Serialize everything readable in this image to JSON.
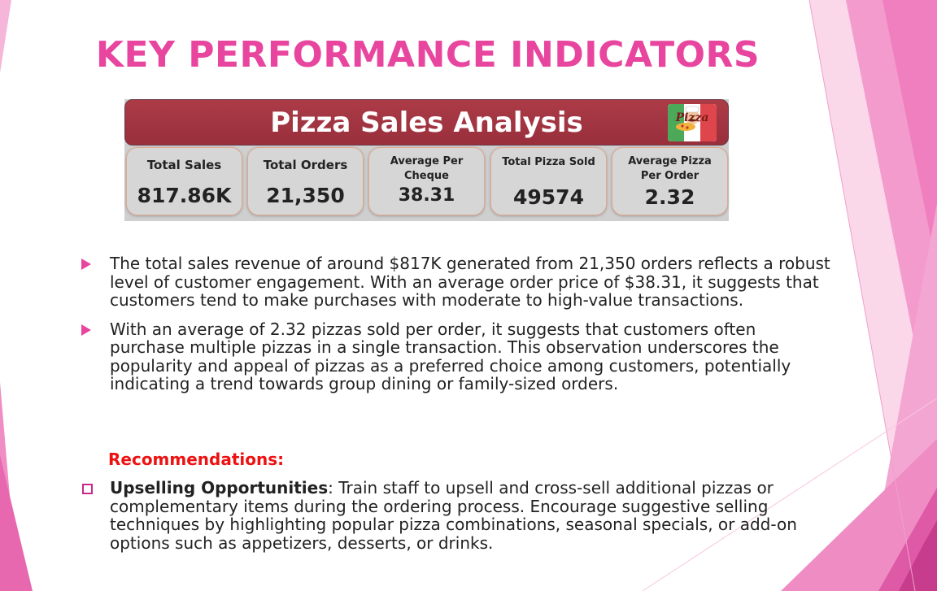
{
  "slide": {
    "title": "KEY PERFORMANCE INDICATORS"
  },
  "dashboard": {
    "banner_title": "Pizza Sales Analysis",
    "logo_text": "Pizza",
    "cards": [
      {
        "label": "Total Sales",
        "value": "817.86K"
      },
      {
        "label": "Total Orders",
        "value": "21,350"
      },
      {
        "label": "Average Per Cheque",
        "value": "38.31"
      },
      {
        "label": "Total Pizza Sold",
        "value": "49574"
      },
      {
        "label": "Average Pizza Per Order",
        "value": "2.32"
      }
    ]
  },
  "bullets": [
    {
      "text": "The total sales revenue of around $817K generated from 21,350 orders reflects a robust level of customer engagement. With an average order price of $38.31, it suggests that customers tend to make purchases with moderate to high-value transactions."
    },
    {
      "text": "With an average of 2.32 pizzas sold per order, it suggests that customers often purchase multiple pizzas in a single transaction. This observation underscores the popularity and appeal of pizzas as a preferred choice among customers, potentially indicating a trend towards group dining or family-sized orders."
    }
  ],
  "recommendations": {
    "heading": "Recommendations:",
    "items": [
      {
        "title": "Upselling Opportunities",
        "text": ": Train staff to upsell and cross-sell additional pizzas or complementary items during the ordering process. Encourage suggestive selling techniques by highlighting popular pizza combinations, seasonal specials, or add-on options such as appetizers, desserts, or drinks."
      }
    ]
  },
  "colors": {
    "accent_pink": "#e8459f",
    "banner_red": "#a3333f",
    "rec_red": "#ee1111"
  }
}
